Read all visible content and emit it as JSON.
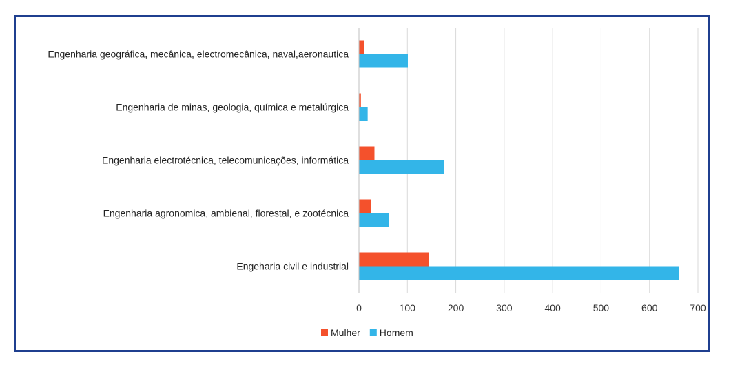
{
  "chart_data": {
    "type": "bar",
    "orientation": "horizontal",
    "categories": [
      "Engenharia geográfica, mecânica, electromecânica, naval,aeronautica",
      "Engenharia de minas, geologia, química e metalúrgica",
      "Engenharia electrotécnica, telecomunicações, informática",
      "Engenharia agronomica, ambienal, florestal, e zootécnica",
      "Engeharia civil e industrial"
    ],
    "series": [
      {
        "name": "Mulher",
        "color": "#f4512c",
        "values": [
          10,
          4,
          32,
          25,
          145
        ]
      },
      {
        "name": "Homem",
        "color": "#33b5e8",
        "values": [
          101,
          18,
          176,
          62,
          661
        ]
      }
    ],
    "xlim": [
      0,
      700
    ],
    "xticks": [
      "0",
      "100",
      "200",
      "300",
      "400",
      "500",
      "600",
      "700"
    ],
    "grid": true,
    "legend": "bottom-center"
  }
}
